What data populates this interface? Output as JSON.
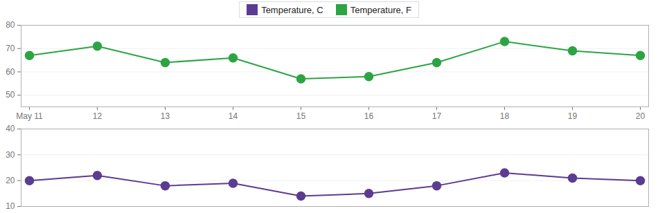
{
  "chart_data": [
    {
      "type": "line",
      "categories": [
        "May 11",
        "12",
        "13",
        "14",
        "15",
        "16",
        "17",
        "18",
        "19",
        "20"
      ],
      "series": [
        {
          "name": "Temperature, F",
          "color": "#2ca444",
          "values": [
            67,
            71,
            64,
            66,
            57,
            58,
            64,
            73,
            69,
            67
          ]
        }
      ],
      "ylim": [
        45,
        80
      ],
      "yticks": [
        50,
        60,
        70,
        80
      ],
      "grid": true,
      "legend": "top",
      "marker": "circle"
    },
    {
      "type": "line",
      "categories": [
        "May 11",
        "12",
        "13",
        "14",
        "15",
        "16",
        "17",
        "18",
        "19",
        "20"
      ],
      "series": [
        {
          "name": "Temperature, C",
          "color": "#5c3c92",
          "values": [
            20,
            22,
            18,
            19,
            14,
            15,
            18,
            23,
            21,
            20
          ]
        }
      ],
      "ylim": [
        10,
        40
      ],
      "yticks": [
        10,
        20,
        30,
        40
      ],
      "grid": true,
      "marker": "circle",
      "tick_labels": "y"
    }
  ]
}
